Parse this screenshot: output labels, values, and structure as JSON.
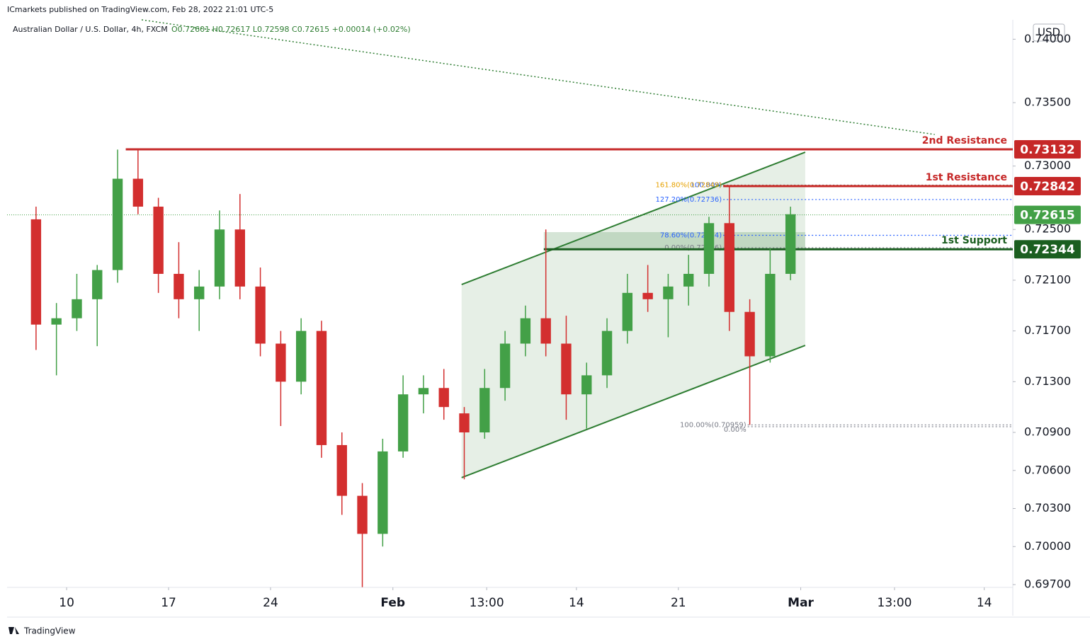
{
  "header": "ICmarkets published on TradingView.com, Feb 28, 2022 21:01 UTC-5",
  "footer": "TradingView",
  "chart_data": {
    "type": "candlestick",
    "title": "Australian Dollar / U.S. Dollar, 4h, FXCM",
    "ohlc_text": "O0.72601 H0.72617 L0.72598 C0.72615 +0.00014 (+0.02%)",
    "currency": "USD",
    "up_color": "#43a047",
    "down_color": "#d32f2f",
    "open": [
      0.7258,
      0.7175,
      0.718,
      0.7195,
      0.7218,
      0.729,
      0.7268,
      0.7215,
      0.7195,
      0.7205,
      0.725,
      0.7205,
      0.716,
      0.713,
      0.717,
      0.708,
      0.704,
      0.701,
      0.7075,
      0.712,
      0.7125,
      0.7105,
      0.709,
      0.7125,
      0.716,
      0.718,
      0.716,
      0.712,
      0.7135,
      0.717,
      0.72,
      0.7195,
      0.7205,
      0.7215,
      0.7255,
      0.7185,
      0.715,
      0.7215
    ],
    "high": [
      0.7268,
      0.7192,
      0.7215,
      0.7222,
      0.7313,
      0.7313,
      0.7275,
      0.724,
      0.7218,
      0.7265,
      0.7278,
      0.722,
      0.717,
      0.718,
      0.7178,
      0.709,
      0.705,
      0.7085,
      0.7135,
      0.7135,
      0.714,
      0.711,
      0.714,
      0.717,
      0.719,
      0.725,
      0.7182,
      0.7145,
      0.718,
      0.7215,
      0.7222,
      0.7215,
      0.723,
      0.726,
      0.7284,
      0.7195,
      0.7235,
      0.7268
    ],
    "low": [
      0.7155,
      0.7135,
      0.717,
      0.7158,
      0.7208,
      0.7262,
      0.72,
      0.718,
      0.717,
      0.7195,
      0.7195,
      0.715,
      0.7095,
      0.712,
      0.707,
      0.7025,
      0.6968,
      0.7,
      0.707,
      0.7105,
      0.71,
      0.7053,
      0.7085,
      0.7115,
      0.715,
      0.715,
      0.71,
      0.7093,
      0.7125,
      0.716,
      0.7185,
      0.7165,
      0.719,
      0.7205,
      0.717,
      0.7096,
      0.7145,
      0.721
    ],
    "close": [
      0.7175,
      0.718,
      0.7195,
      0.7218,
      0.729,
      0.7268,
      0.7215,
      0.7195,
      0.7205,
      0.725,
      0.7205,
      0.716,
      0.713,
      0.717,
      0.708,
      0.704,
      0.701,
      0.7075,
      0.712,
      0.7125,
      0.711,
      0.709,
      0.7125,
      0.716,
      0.718,
      0.716,
      0.712,
      0.7135,
      0.717,
      0.72,
      0.7195,
      0.7205,
      0.7215,
      0.7255,
      0.7185,
      0.715,
      0.7215,
      0.7262
    ],
    "xlim": [
      -0.92,
      48.4
    ],
    "xticks": [
      {
        "value": 2,
        "label": "10"
      },
      {
        "value": 7,
        "label": "17"
      },
      {
        "value": 12,
        "label": "24"
      },
      {
        "value": 18,
        "label": "Feb"
      },
      {
        "value": 22.6,
        "label": "13:00"
      },
      {
        "value": 27,
        "label": "14"
      },
      {
        "value": 32,
        "label": "21"
      },
      {
        "value": 38,
        "label": "Mar"
      },
      {
        "value": 42.6,
        "label": "13:00"
      },
      {
        "value": 47,
        "label": "14"
      }
    ],
    "ylim": [
      0.69678,
      0.74153
    ],
    "yticks": [
      {
        "value": 0.74,
        "label": "0.74000"
      },
      {
        "value": 0.735,
        "label": "0.73500"
      },
      {
        "value": 0.73,
        "label": "0.73000"
      },
      {
        "value": 0.725,
        "label": "0.72500"
      },
      {
        "value": 0.721,
        "label": "0.72100"
      },
      {
        "value": 0.717,
        "label": "0.71700"
      },
      {
        "value": 0.713,
        "label": "0.71300"
      },
      {
        "value": 0.709,
        "label": "0.70900"
      },
      {
        "value": 0.706,
        "label": "0.70600"
      },
      {
        "value": 0.703,
        "label": "0.70300"
      },
      {
        "value": 0.7,
        "label": "0.70000"
      },
      {
        "value": 0.697,
        "label": "0.69700"
      }
    ],
    "levels": [
      {
        "name": "2nd Resistance",
        "value": 0.73132,
        "x0": 4.9,
        "color": "#c62828"
      },
      {
        "name": "1st Resistance",
        "value": 0.72842,
        "x0": 34.2,
        "color": "#c62828"
      },
      {
        "name": "1st Support",
        "value": 0.72344,
        "x0": 25.4,
        "color": "#1b5e20"
      }
    ],
    "last_price": {
      "value": 0.72615,
      "color": "#43a047"
    },
    "fib_levels": [
      {
        "label": "100.00%",
        "value": 0.7285,
        "x0": 34.2,
        "color": "#2962ff"
      },
      {
        "label": "161.80%(0.72849)",
        "value": 0.72849,
        "x0": 34.2,
        "color": "#e6a100"
      },
      {
        "label": "127.20%(0.72736)",
        "value": 0.72736,
        "x0": 34.2,
        "color": "#2962ff"
      },
      {
        "label": "78.60%(0.72454)",
        "value": 0.72454,
        "x0": 34.2,
        "color": "#2962ff"
      },
      {
        "label": "0.00%(0.72356)",
        "value": 0.72356,
        "x0": 34.2,
        "color": "#787b86"
      },
      {
        "label": "100.00%(0.70959)",
        "value": 0.70959,
        "x0": 35.4,
        "color": "#787b86"
      },
      {
        "label": "0.00%",
        "value": 0.70945,
        "x0": 35.4,
        "color": "#787b86"
      }
    ],
    "channel": {
      "x": [
        21.37,
        38.22
      ],
      "upper": [
        0.72066,
        0.73109
      ],
      "lower": [
        0.70543,
        0.71586
      ],
      "color": "#2e7d32"
    },
    "zone": {
      "x": [
        25.4,
        38.22
      ],
      "values": [
        0.72344,
        0.72479
      ]
    },
    "trendline": {
      "x": [
        5.68,
        44.57
      ],
      "values": [
        0.74153,
        0.73249
      ],
      "color": "#2e7d32"
    }
  }
}
